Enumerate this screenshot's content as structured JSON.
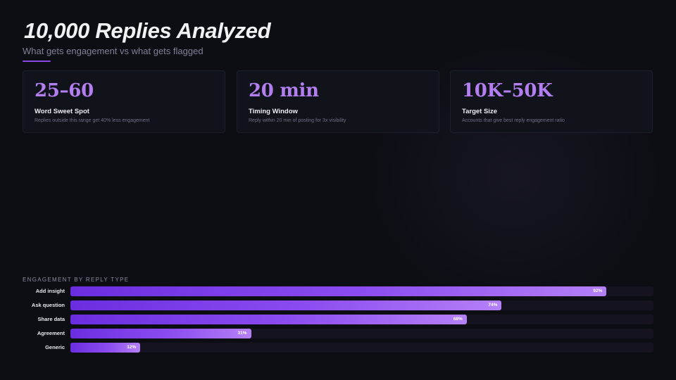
{
  "header": {
    "title": "10,000 Replies Analyzed",
    "subtitle": "What gets engagement vs what gets flagged"
  },
  "stats": [
    {
      "value": "25–60",
      "label": "Word Sweet Spot",
      "description": "Replies outside this range get 40% less engagement"
    },
    {
      "value": "20 min",
      "label": "Timing Window",
      "description": "Reply within 20 min of posting for 3x visibility"
    },
    {
      "value": "10K–50K",
      "label": "Target Size",
      "description": "Accounts that give best reply engagement ratio"
    }
  ],
  "colors": {
    "accent": "#b27ef0",
    "bar_start": "#6a2ee0",
    "bar_end": "#b480f6",
    "background": "#0d0e14"
  },
  "chart_data": {
    "type": "bar",
    "orientation": "horizontal",
    "title": "ENGAGEMENT BY REPLY TYPE",
    "categories": [
      "Add insight",
      "Ask question",
      "Share data",
      "Agreement",
      "Generic"
    ],
    "values": [
      92,
      74,
      68,
      31,
      12
    ],
    "value_labels": [
      "92%",
      "74%",
      "68%",
      "31%",
      "12%"
    ],
    "xlim": [
      0,
      100
    ],
    "grid": false
  }
}
